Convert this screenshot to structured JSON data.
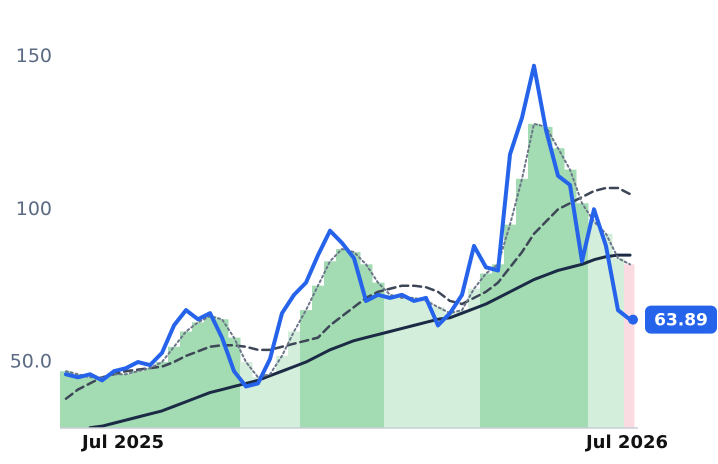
{
  "chart_data": {
    "type": "line",
    "categories": [
      null,
      "Jul 2025",
      null,
      null,
      null,
      null,
      null,
      null,
      null,
      null,
      null,
      null,
      null,
      null,
      null,
      null,
      null,
      null,
      null,
      null,
      null,
      null,
      null,
      null,
      null,
      null,
      null,
      null,
      null,
      null,
      null,
      null,
      null,
      null,
      null,
      null,
      null,
      null,
      null,
      null,
      null,
      null,
      null,
      "Jul 2026",
      null,
      null,
      null,
      null
    ],
    "series": [
      {
        "color": "#2563eb",
        "style": "solid",
        "width": 4,
        "values": [
          46,
          45,
          46,
          44,
          47,
          48,
          50,
          49,
          53,
          62,
          67,
          64,
          66,
          58,
          47,
          42,
          43,
          51,
          66,
          72,
          76,
          85,
          93,
          89,
          84,
          70,
          72,
          71,
          72,
          70,
          71,
          62,
          66,
          72,
          88,
          81,
          80,
          118,
          130,
          147,
          126,
          111,
          108,
          83,
          100,
          88,
          67,
          63.89
        ]
      },
      {
        "color": "#6b7689",
        "style": "dotted",
        "width": 2,
        "values": [
          47,
          46,
          45,
          45,
          46,
          46,
          47,
          48,
          50,
          55,
          60,
          63,
          65,
          64,
          58,
          50,
          45,
          46,
          52,
          60,
          67,
          75,
          83,
          87,
          86,
          82,
          76,
          72,
          71,
          71,
          70,
          68,
          66,
          67,
          74,
          79,
          82,
          95,
          110,
          128,
          127,
          120,
          113,
          102,
          96,
          92,
          84,
          82
        ]
      },
      {
        "color": "#3d4656",
        "style": "dashed",
        "width": 2.5,
        "values": [
          38,
          41,
          43,
          45,
          46,
          47,
          47.5,
          48,
          48.5,
          50,
          52,
          53.5,
          55,
          55.5,
          55.5,
          55,
          54,
          54,
          55,
          56,
          57,
          58,
          62,
          65,
          68,
          71,
          73,
          74,
          75,
          75,
          74.5,
          73,
          70,
          69,
          71,
          73,
          76,
          81,
          86,
          92,
          96,
          100,
          102,
          104,
          106,
          107,
          107,
          105
        ]
      },
      {
        "color": "#1b2a45",
        "style": "solid",
        "width": 3,
        "values": [
          null,
          null,
          28.5,
          29,
          30,
          31,
          32,
          33,
          34,
          35.5,
          37,
          38.5,
          40,
          41,
          42,
          43,
          44,
          45.5,
          47,
          48.5,
          50,
          52,
          54,
          55.5,
          57,
          58,
          59,
          60,
          61,
          62,
          63,
          64,
          64.5,
          66,
          67.5,
          69,
          71,
          73,
          75,
          77,
          78.5,
          80,
          81,
          82,
          83.5,
          84.5,
          85,
          85
        ]
      }
    ],
    "shade_colors": [
      "#a3dbb3",
      "#a3dbb3",
      "#a3dbb3",
      "#a3dbb3",
      "#a3dbb3",
      "#a3dbb3",
      "#a3dbb3",
      "#a3dbb3",
      "#a3dbb3",
      "#a3dbb3",
      "#a3dbb3",
      "#a3dbb3",
      "#a3dbb3",
      "#a3dbb3",
      "#a3dbb3",
      "#d4eedc",
      "#d4eedc",
      "#d4eedc",
      "#d4eedc",
      "#d4eedc",
      "#a3dbb3",
      "#a3dbb3",
      "#a3dbb3",
      "#a3dbb3",
      "#a3dbb3",
      "#a3dbb3",
      "#a3dbb3",
      "#d4eedc",
      "#d4eedc",
      "#d4eedc",
      "#d4eedc",
      "#d4eedc",
      "#d4eedc",
      "#d4eedc",
      "#d4eedc",
      "#a3dbb3",
      "#a3dbb3",
      "#a3dbb3",
      "#a3dbb3",
      "#a3dbb3",
      "#a3dbb3",
      "#a3dbb3",
      "#a3dbb3",
      "#a3dbb3",
      "#d4eedc",
      "#d4eedc",
      "#d4eedc",
      "#fbdbe2"
    ],
    "ylim": [
      28.4,
      162
    ],
    "yticks": [
      {
        "value": 50,
        "label": "50.0"
      },
      100,
      150
    ]
  }
}
